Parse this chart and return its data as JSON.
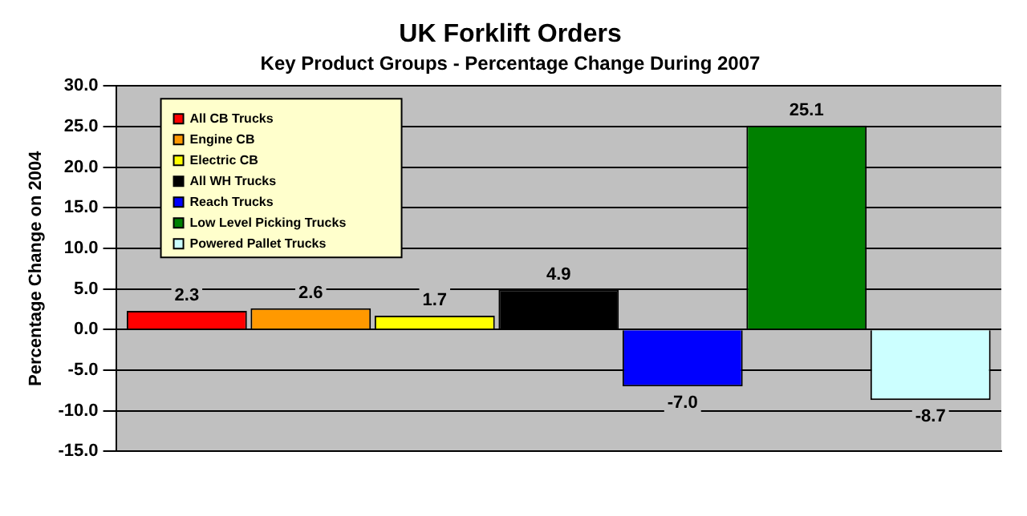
{
  "chart_data": {
    "type": "bar",
    "title": "UK Forklift Orders",
    "subtitle": "Key Product Groups - Percentage Change During 2007",
    "ylabel": "Percentage Change on 2004",
    "categories": [
      null
    ],
    "series": [
      {
        "name": "All CB Trucks",
        "color": "#ff0000",
        "values": [
          2.3
        ],
        "value_labels": [
          "2.3"
        ]
      },
      {
        "name": "Engine CB",
        "color": "#ff9900",
        "values": [
          2.6
        ],
        "value_labels": [
          "2.6"
        ]
      },
      {
        "name": "Electric CB",
        "color": "#ffff00",
        "values": [
          1.7
        ],
        "value_labels": [
          "1.7"
        ]
      },
      {
        "name": "All WH Trucks",
        "color": "#000000",
        "values": [
          4.9
        ],
        "value_labels": [
          "4.9"
        ]
      },
      {
        "name": "Reach Trucks",
        "color": "#0000ff",
        "values": [
          -7.0
        ],
        "value_labels": [
          "-7.0"
        ]
      },
      {
        "name": "Low Level Picking Trucks",
        "color": "#008000",
        "values": [
          25.1
        ],
        "value_labels": [
          "25.1"
        ]
      },
      {
        "name": "Powered Pallet Trucks",
        "color": "#ccffff",
        "values": [
          -8.7
        ],
        "value_labels": [
          "-8.7"
        ]
      }
    ],
    "ylim": [
      -15,
      30
    ],
    "yticks": [
      {
        "value": -15,
        "label": "-15.0"
      },
      {
        "value": -10,
        "label": "-10.0"
      },
      {
        "value": -5,
        "label": "-5.0"
      },
      {
        "value": 0,
        "label": "0.0"
      },
      {
        "value": 5,
        "label": "5.0"
      },
      {
        "value": 10,
        "label": "10.0"
      },
      {
        "value": 15,
        "label": "15.0"
      },
      {
        "value": 20,
        "label": "20.0"
      },
      {
        "value": 25,
        "label": "25.0"
      },
      {
        "value": 30,
        "label": "30.0"
      }
    ],
    "grid": "y",
    "legend": "top left"
  }
}
